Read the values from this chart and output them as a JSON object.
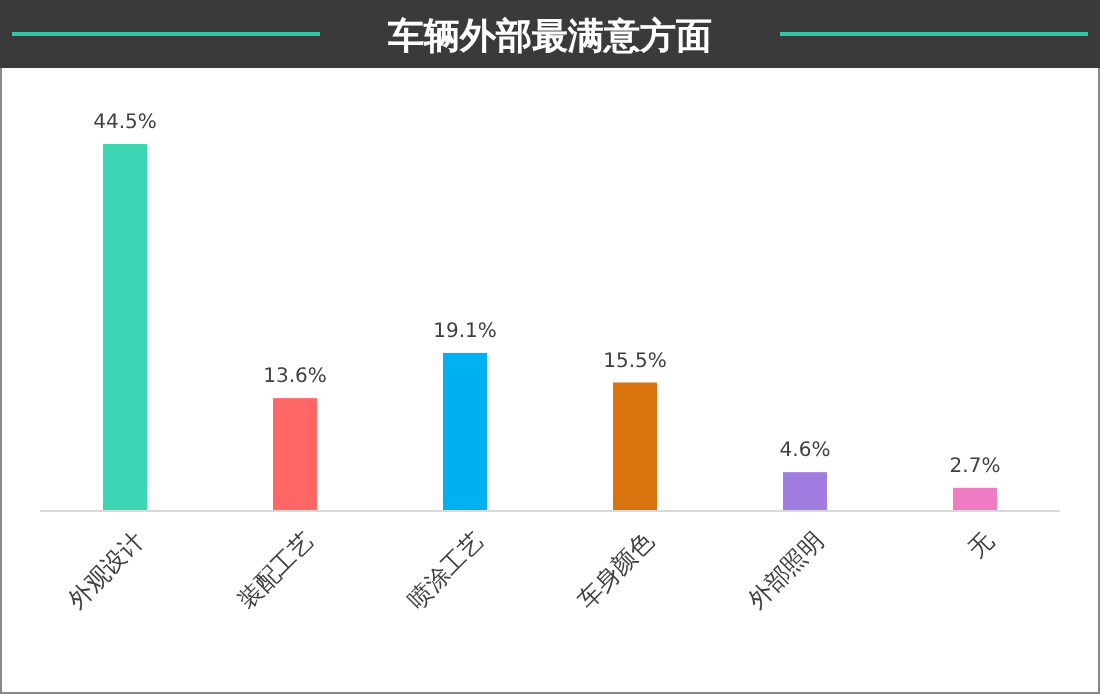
{
  "chart_data": {
    "type": "bar",
    "title": "车辆外部最满意方面",
    "categories": [
      "外观设计",
      "装配工艺",
      "喷涂工艺",
      "车身颜色",
      "外部照明",
      "无"
    ],
    "values": [
      44.5,
      13.6,
      19.1,
      15.5,
      4.6,
      2.7
    ],
    "colors": [
      "#3dd6b5",
      "#ff6666",
      "#00b0f0",
      "#d9730d",
      "#a07de0",
      "#ef7cc4"
    ],
    "value_labels": [
      "44.5%",
      "13.6%",
      "19.1%",
      "15.5%",
      "4.6%",
      "2.7%"
    ]
  }
}
